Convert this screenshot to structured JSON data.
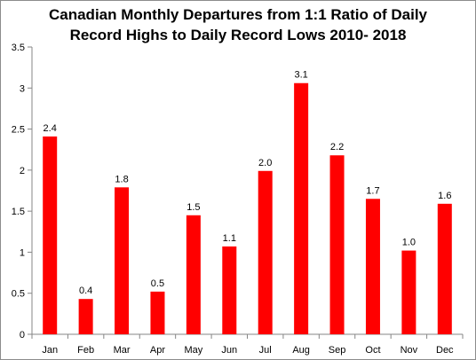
{
  "chart_data": {
    "type": "bar",
    "title_lines": [
      "Canadian Monthly Departures from 1:1 Ratio of Daily",
      "Record Highs to Daily Record Lows 2010- 2018"
    ],
    "categories": [
      "Jan",
      "Feb",
      "Mar",
      "Apr",
      "May",
      "Jun",
      "Jul",
      "Aug",
      "Sep",
      "Oct",
      "Nov",
      "Dec"
    ],
    "values": [
      2.41,
      0.43,
      1.79,
      0.52,
      1.45,
      1.07,
      1.99,
      3.06,
      2.18,
      1.65,
      1.02,
      1.59
    ],
    "data_labels": [
      "2.4",
      "0.4",
      "1.8",
      "0.5",
      "1.5",
      "1.1",
      "2.0",
      "3.1",
      "2.2",
      "1.7",
      "1.0",
      "1.6"
    ],
    "y_ticks": [
      "0",
      "0.5",
      "1",
      "1.5",
      "2",
      "2.5",
      "3",
      "3.5"
    ],
    "ylim": [
      0,
      3.5
    ],
    "xlabel": "",
    "ylabel": "",
    "grid": false,
    "legend": "none",
    "bar_color": "#ff0000"
  }
}
